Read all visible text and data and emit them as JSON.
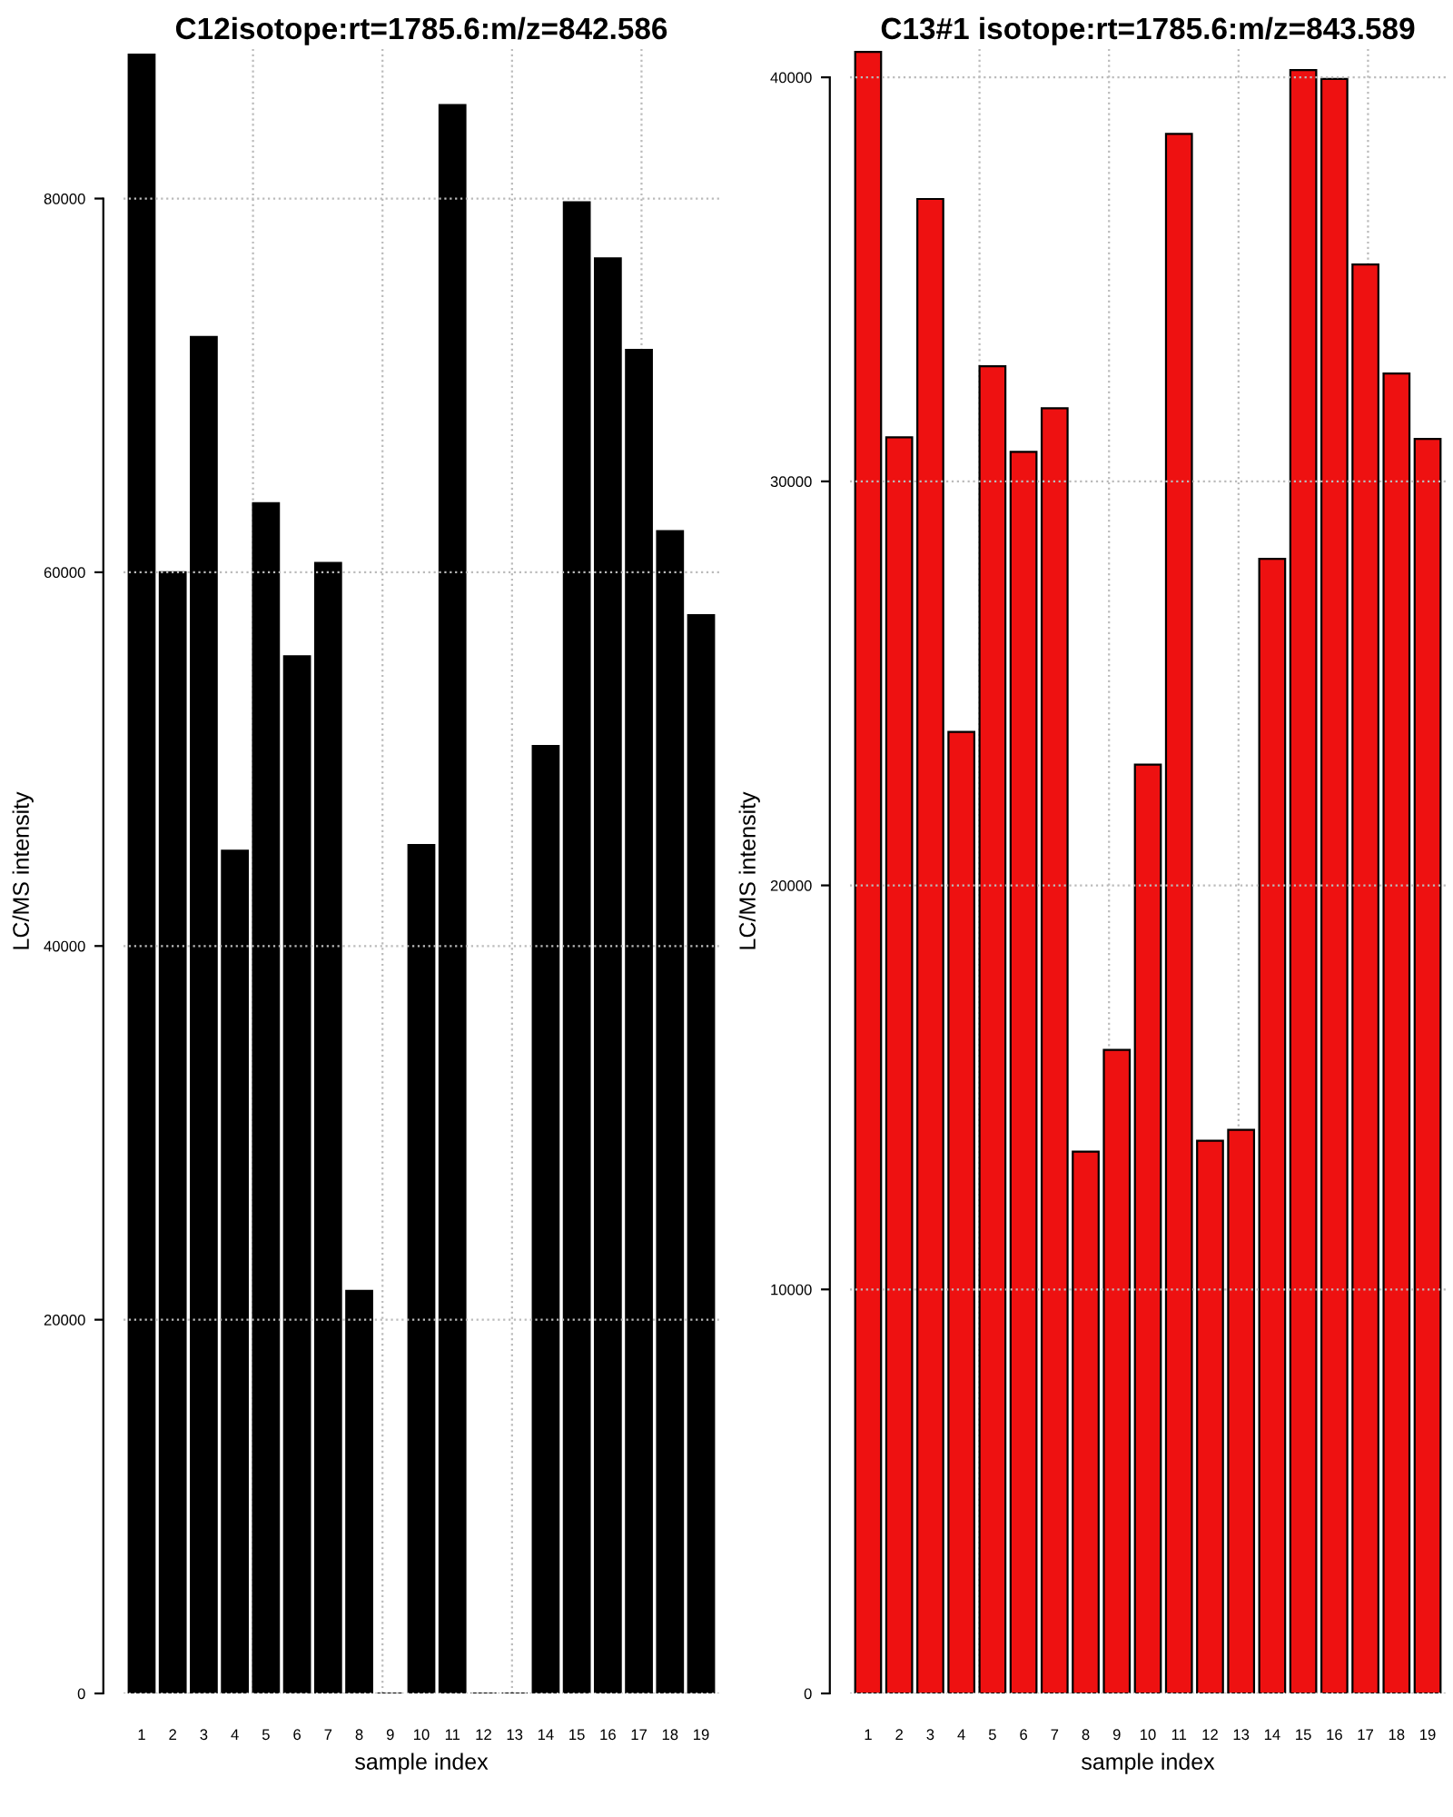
{
  "chart_data": [
    {
      "type": "bar",
      "title": "C12isotope:rt=1785.6:m/z=842.586",
      "xlabel": "sample index",
      "ylabel": "LC/MS intensity",
      "categories": [
        "1",
        "2",
        "3",
        "4",
        "5",
        "6",
        "7",
        "8",
        "9",
        "10",
        "11",
        "12",
        "13",
        "14",
        "15",
        "16",
        "17",
        "18",
        "19"
      ],
      "series": [
        {
          "color": "#000000",
          "values": [
            87700,
            60000,
            72600,
            45100,
            63700,
            55500,
            60500,
            21550,
            0,
            45400,
            85000,
            0,
            0,
            50700,
            79800,
            76800,
            71900,
            62200,
            57700
          ]
        }
      ],
      "ylim": [
        0,
        88000
      ],
      "yticks": [
        0,
        20000,
        40000,
        60000,
        80000
      ],
      "grid": true
    },
    {
      "type": "bar",
      "title": "C13#1 isotope:rt=1785.6:m/z=843.589",
      "xlabel": "sample index",
      "ylabel": "LC/MS intensity",
      "categories": [
        "1",
        "2",
        "3",
        "4",
        "5",
        "6",
        "7",
        "8",
        "9",
        "10",
        "11",
        "12",
        "13",
        "14",
        "15",
        "16",
        "17",
        "18",
        "19"
      ],
      "series": [
        {
          "color": "#ee1111",
          "values": [
            40630,
            31090,
            36990,
            23800,
            32850,
            30730,
            31810,
            13410,
            15930,
            22990,
            38600,
            13680,
            13950,
            28080,
            40180,
            39960,
            35370,
            32670,
            31050
          ]
        }
      ],
      "ylim": [
        0,
        40700
      ],
      "yticks": [
        0,
        10000,
        20000,
        30000,
        40000
      ],
      "grid": true
    }
  ]
}
